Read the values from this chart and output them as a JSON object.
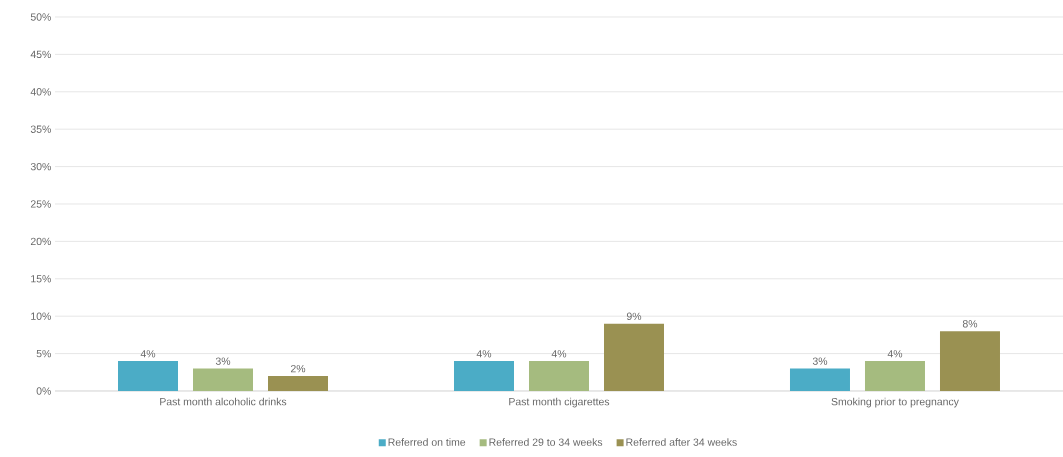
{
  "chart_data": {
    "type": "bar",
    "categories": [
      "Past month alcoholic drinks",
      "Past month cigarettes",
      "Smoking prior to pregnancy"
    ],
    "series": [
      {
        "name": "Referred on time",
        "color": "#4bacc6",
        "values": [
          4,
          4,
          3
        ],
        "value_labels": [
          "4%",
          "4%",
          "3%"
        ]
      },
      {
        "name": "Referred 29 to 34 weeks",
        "color": "#a5bb7f",
        "values": [
          3,
          4,
          4
        ],
        "value_labels": [
          "3%",
          "4%",
          "4%"
        ]
      },
      {
        "name": "Referred after 34 weeks",
        "color": "#9a9152",
        "values": [
          2,
          9,
          8
        ],
        "value_labels": [
          "2%",
          "9%",
          "8%"
        ]
      }
    ],
    "ylim": [
      0,
      50
    ],
    "yticks": [
      {
        "value": 0,
        "label": "0%"
      },
      {
        "value": 5,
        "label": "5%"
      },
      {
        "value": 10,
        "label": "10%"
      },
      {
        "value": 15,
        "label": "15%"
      },
      {
        "value": 20,
        "label": "20%"
      },
      {
        "value": 25,
        "label": "25%"
      },
      {
        "value": 30,
        "label": "30%"
      },
      {
        "value": 35,
        "label": "35%"
      },
      {
        "value": 40,
        "label": "40%"
      },
      {
        "value": 45,
        "label": "45%"
      },
      {
        "value": 50,
        "label": "50%"
      }
    ],
    "grid": "y",
    "legend": "bottom"
  }
}
